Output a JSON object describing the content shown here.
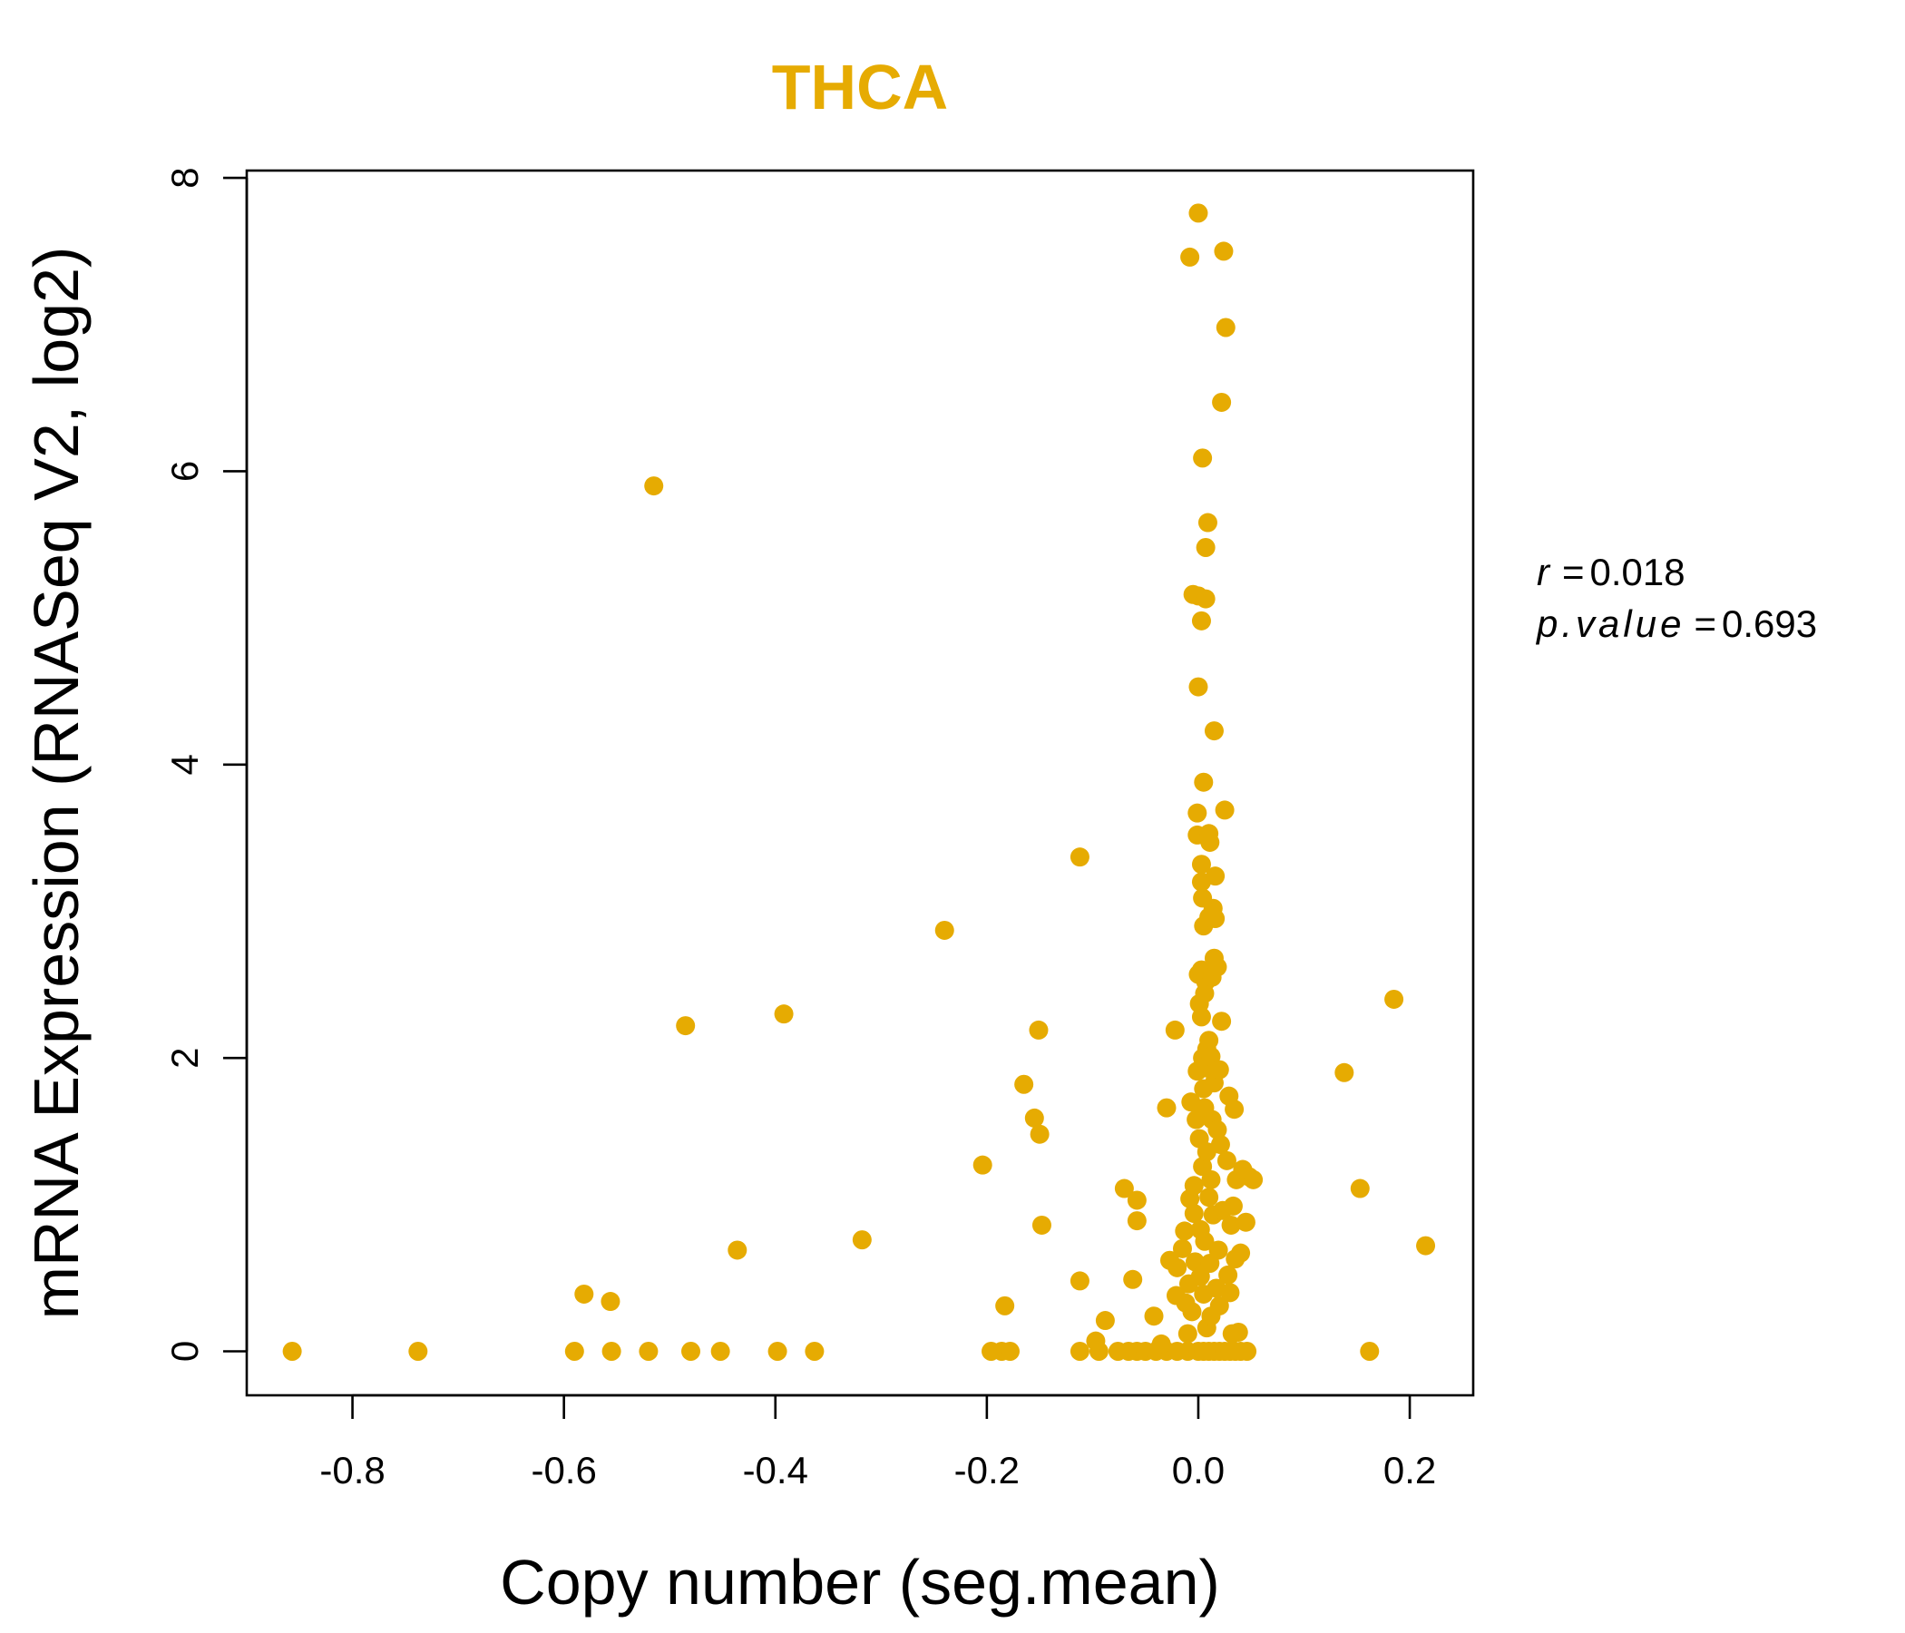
{
  "chart_data": {
    "type": "scatter",
    "title": "THCA",
    "xlabel": "Copy number (seg.mean)",
    "ylabel": "mRNA Expression (RNASeq V2, log2)",
    "xlim": [
      -0.9,
      0.26
    ],
    "ylim": [
      -0.3,
      8.05
    ],
    "x_ticks": [
      -0.8,
      -0.6,
      -0.4,
      -0.2,
      0.0,
      0.2
    ],
    "x_tick_labels": [
      "-0.8",
      "-0.6",
      "-0.4",
      "-0.2",
      "0.0",
      "0.2"
    ],
    "y_ticks": [
      0,
      2,
      4,
      6,
      8
    ],
    "y_tick_labels": [
      "0",
      "2",
      "4",
      "6",
      "8"
    ],
    "grid": false,
    "point_color": "#E6AB02",
    "annotation": {
      "r_label": "r",
      "r_value": "0.018",
      "p_label": "p.value",
      "p_value": "0.693"
    },
    "series": [
      {
        "name": "samples",
        "points": [
          [
            -0.857,
            0
          ],
          [
            -0.738,
            0
          ],
          [
            -0.59,
            0
          ],
          [
            -0.555,
            0
          ],
          [
            -0.52,
            0
          ],
          [
            -0.48,
            0
          ],
          [
            -0.452,
            0
          ],
          [
            -0.398,
            0
          ],
          [
            -0.363,
            0
          ],
          [
            -0.196,
            0
          ],
          [
            -0.186,
            0
          ],
          [
            -0.178,
            0
          ],
          [
            -0.112,
            0
          ],
          [
            -0.094,
            0
          ],
          [
            -0.076,
            0
          ],
          [
            -0.066,
            0
          ],
          [
            -0.058,
            0
          ],
          [
            -0.05,
            0
          ],
          [
            -0.04,
            0
          ],
          [
            -0.03,
            0
          ],
          [
            -0.02,
            0
          ],
          [
            -0.01,
            0
          ],
          [
            0.0,
            0
          ],
          [
            0.005,
            0
          ],
          [
            0.01,
            0
          ],
          [
            0.015,
            0
          ],
          [
            0.02,
            0
          ],
          [
            0.025,
            0
          ],
          [
            0.03,
            0
          ],
          [
            0.035,
            0
          ],
          [
            0.04,
            0
          ],
          [
            0.046,
            0
          ],
          [
            0.162,
            0
          ],
          [
            -0.515,
            5.9
          ],
          [
            -0.485,
            2.22
          ],
          [
            -0.392,
            2.3
          ],
          [
            -0.436,
            0.69
          ],
          [
            -0.581,
            0.39
          ],
          [
            -0.556,
            0.34
          ],
          [
            -0.318,
            0.76
          ],
          [
            -0.24,
            2.87
          ],
          [
            -0.204,
            1.27
          ],
          [
            -0.183,
            0.31
          ],
          [
            -0.165,
            1.82
          ],
          [
            -0.155,
            1.59
          ],
          [
            -0.151,
            2.19
          ],
          [
            -0.15,
            1.48
          ],
          [
            -0.148,
            0.86
          ],
          [
            -0.112,
            3.37
          ],
          [
            -0.112,
            0.48
          ],
          [
            -0.097,
            0.07
          ],
          [
            -0.088,
            0.21
          ],
          [
            -0.07,
            1.11
          ],
          [
            -0.062,
            0.49
          ],
          [
            -0.058,
            1.03
          ],
          [
            -0.058,
            0.89
          ],
          [
            -0.042,
            0.24
          ],
          [
            -0.035,
            0.05
          ],
          [
            -0.03,
            1.66
          ],
          [
            -0.027,
            0.62
          ],
          [
            -0.022,
            2.19
          ],
          [
            -0.021,
            0.38
          ],
          [
            -0.02,
            0.57
          ],
          [
            -0.015,
            0.7
          ],
          [
            -0.013,
            0.82
          ],
          [
            -0.012,
            0.33
          ],
          [
            -0.01,
            0.12
          ],
          [
            -0.009,
            0.46
          ],
          [
            -0.008,
            1.04
          ],
          [
            -0.007,
            1.7
          ],
          [
            -0.006,
            0.27
          ],
          [
            -0.005,
            5.16
          ],
          [
            -0.004,
            0.94
          ],
          [
            -0.004,
            1.13
          ],
          [
            -0.003,
            0.61
          ],
          [
            -0.002,
            1.58
          ],
          [
            -0.001,
            3.67
          ],
          [
            -0.001,
            3.52
          ],
          [
            -0.001,
            1.91
          ],
          [
            0.0,
            7.76
          ],
          [
            0.0,
            5.15
          ],
          [
            0.0,
            4.53
          ],
          [
            0.0,
            2.57
          ],
          [
            0.001,
            2.37
          ],
          [
            0.001,
            1.45
          ],
          [
            0.002,
            0.83
          ],
          [
            0.002,
            0.51
          ],
          [
            0.003,
            3.2
          ],
          [
            0.003,
            3.32
          ],
          [
            0.003,
            2.28
          ],
          [
            0.003,
            2.6
          ],
          [
            0.003,
            4.98
          ],
          [
            0.004,
            6.09
          ],
          [
            0.004,
            3.09
          ],
          [
            0.004,
            2.0
          ],
          [
            0.004,
            1.26
          ],
          [
            0.005,
            3.88
          ],
          [
            0.005,
            2.9
          ],
          [
            0.005,
            1.79
          ],
          [
            0.005,
            0.39
          ],
          [
            0.006,
            2.44
          ],
          [
            0.006,
            1.66
          ],
          [
            0.006,
            0.75
          ],
          [
            0.007,
            5.48
          ],
          [
            0.007,
            5.13
          ],
          [
            0.007,
            2.52
          ],
          [
            0.008,
            2.06
          ],
          [
            0.008,
            1.36
          ],
          [
            0.008,
            0.16
          ],
          [
            0.009,
            5.65
          ],
          [
            0.009,
            1.93
          ],
          [
            0.01,
            3.53
          ],
          [
            0.01,
            2.96
          ],
          [
            0.01,
            2.12
          ],
          [
            0.01,
            1.05
          ],
          [
            0.011,
            0.6
          ],
          [
            0.011,
            3.47
          ],
          [
            0.012,
            2.01
          ],
          [
            0.012,
            1.17
          ],
          [
            0.012,
            0.24
          ],
          [
            0.013,
            2.55
          ],
          [
            0.013,
            1.58
          ],
          [
            0.014,
            3.02
          ],
          [
            0.014,
            0.93
          ],
          [
            0.015,
            4.23
          ],
          [
            0.015,
            2.68
          ],
          [
            0.015,
            1.83
          ],
          [
            0.016,
            3.24
          ],
          [
            0.016,
            2.95
          ],
          [
            0.017,
            0.43
          ],
          [
            0.018,
            2.62
          ],
          [
            0.018,
            1.51
          ],
          [
            0.019,
            0.69
          ],
          [
            0.02,
            1.92
          ],
          [
            0.02,
            0.31
          ],
          [
            0.021,
            1.41
          ],
          [
            0.022,
            6.47
          ],
          [
            0.022,
            2.25
          ],
          [
            0.023,
            0.96
          ],
          [
            0.024,
            7.5
          ],
          [
            0.025,
            3.69
          ],
          [
            0.026,
            6.98
          ],
          [
            0.027,
            1.3
          ],
          [
            0.028,
            0.52
          ],
          [
            0.029,
            1.74
          ],
          [
            0.03,
            0.4
          ],
          [
            0.031,
            0.86
          ],
          [
            0.032,
            0.12
          ],
          [
            0.033,
            0.99
          ],
          [
            0.034,
            1.65
          ],
          [
            0.035,
            0.63
          ],
          [
            0.036,
            1.17
          ],
          [
            0.038,
            0.13
          ],
          [
            0.04,
            0.67
          ],
          [
            0.042,
            1.24
          ],
          [
            0.045,
            0.88
          ],
          [
            0.048,
            1.19
          ],
          [
            0.052,
            1.17
          ],
          [
            -0.008,
            7.46
          ],
          [
            0.138,
            1.9
          ],
          [
            0.153,
            1.11
          ],
          [
            0.185,
            2.4
          ],
          [
            0.215,
            0.72
          ]
        ]
      }
    ]
  }
}
